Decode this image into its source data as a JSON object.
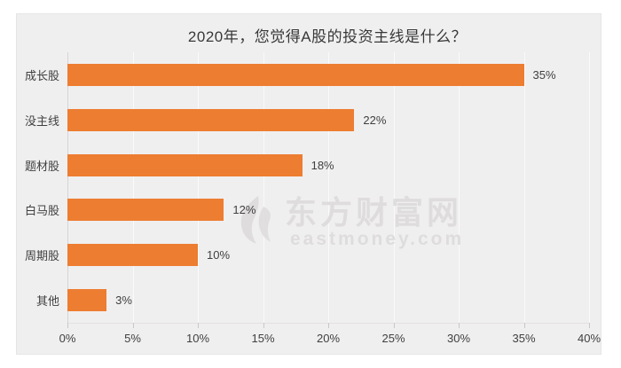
{
  "chart_data": {
    "type": "bar",
    "orientation": "horizontal",
    "title": "2020年，您觉得A股的投资主线是什么？",
    "categories": [
      "成长股",
      "没主线",
      "题材股",
      "白马股",
      "周期股",
      "其他"
    ],
    "values": [
      35,
      22,
      18,
      12,
      10,
      3
    ],
    "value_labels": [
      "35%",
      "22%",
      "18%",
      "12%",
      "10%",
      "3%"
    ],
    "x_ticks": [
      "0%",
      "5%",
      "10%",
      "15%",
      "20%",
      "25%",
      "30%",
      "35%",
      "40%"
    ],
    "xlim": [
      0,
      40
    ],
    "xlabel": "",
    "ylabel": "",
    "grid": true,
    "legend": false,
    "bar_color": "#ed7d31",
    "panel_background": "#f0efef",
    "gridline_color": "#fafafa"
  },
  "watermark": {
    "name_cn": "东方财富网",
    "domain": "eastmoney.com",
    "color": "#dedcdc"
  }
}
